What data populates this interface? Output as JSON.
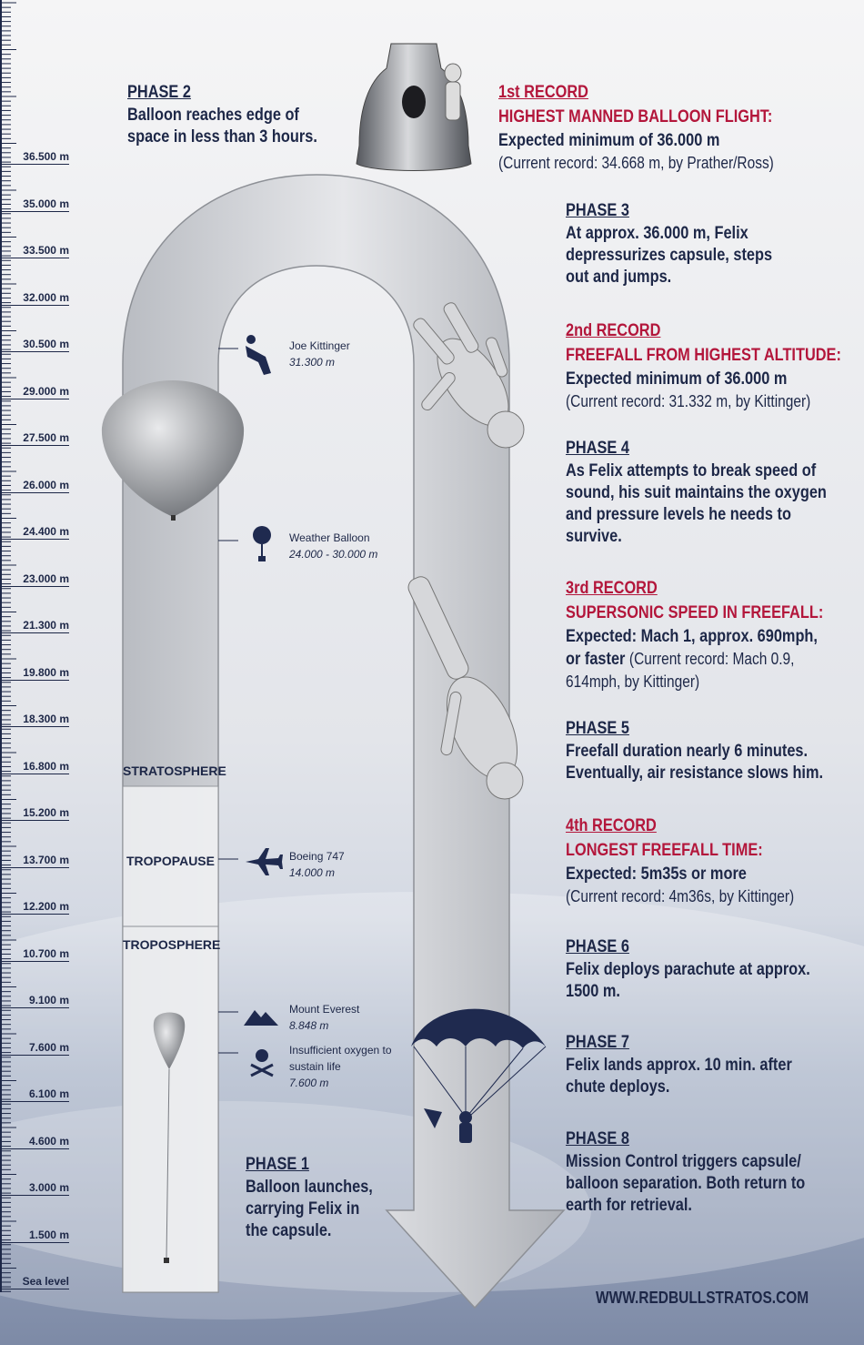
{
  "ruler": {
    "labels": [
      "36.500 m",
      "35.000 m",
      "33.500 m",
      "32.000 m",
      "30.500 m",
      "29.000 m",
      "27.500 m",
      "26.000 m",
      "24.400 m",
      "23.000 m",
      "21.300 m",
      "19.800 m",
      "18.300 m",
      "16.800 m",
      "15.200 m",
      "13.700 m",
      "12.200 m",
      "10.700 m",
      "9.100 m",
      "7.600 m",
      "6.100 m",
      "4.600 m",
      "3.000 m",
      "1.500 m",
      "Sea level"
    ]
  },
  "layers": [
    "STRATOSPHERE",
    "TROPOPAUSE",
    "TROPOSPHERE"
  ],
  "markers": [
    {
      "name": "Joe Kittinger",
      "altitude": "31.300 m"
    },
    {
      "name": "Weather Balloon",
      "altitude": "24.000 - 30.000 m"
    },
    {
      "name": "Boeing 747",
      "altitude": "14.000 m"
    },
    {
      "name": "Mount Everest",
      "altitude": "8.848 m"
    },
    {
      "name": "Insufficient oxygen to sustain life",
      "altitude": "7.600 m"
    }
  ],
  "phase_1": {
    "label": "PHASE 1",
    "lines": [
      "Balloon launches,",
      "carrying Felix in",
      "the capsule."
    ]
  },
  "phase_2": {
    "label": "PHASE 2",
    "lines": [
      "Balloon reaches edge of",
      "space in less than 3 hours."
    ]
  },
  "record_1": {
    "label": "1st RECORD",
    "heading": "HIGHEST MANNED BALLOON FLIGHT:",
    "lines": [
      "Expected minimum of 36.000 m"
    ],
    "note": "(Current record: 34.668 m, by Prather/Ross)"
  },
  "phase_3": {
    "label": "PHASE 3",
    "lines": [
      "At approx. 36.000 m, Felix",
      "depressurizes capsule, steps",
      "out and jumps."
    ]
  },
  "record_2": {
    "label": "2nd RECORD",
    "heading": "FREEFALL FROM HIGHEST ALTITUDE:",
    "lines": [
      "Expected minimum of 36.000 m"
    ],
    "note": "(Current record: 31.332 m, by Kittinger)"
  },
  "phase_4": {
    "label": "PHASE 4",
    "lines": [
      "As Felix attempts to break speed of",
      "sound, his suit maintains the oxygen",
      "and pressure levels he needs to",
      "survive."
    ]
  },
  "record_3": {
    "label": "3rd RECORD",
    "heading": "SUPERSONIC SPEED IN FREEFALL:",
    "lines": [
      "Expected: Mach 1, approx. 690mph,",
      "or faster"
    ],
    "note_lines": [
      "(Current record: Mach 0.9,",
      "614mph, by Kittinger)"
    ]
  },
  "phase_5": {
    "label": "PHASE 5",
    "lines": [
      "Freefall duration nearly 6 minutes.",
      "Eventually, air resistance slows him."
    ]
  },
  "record_4": {
    "label": "4th RECORD",
    "heading": "LONGEST FREEFALL TIME:",
    "lines": [
      "Expected: 5m35s or more"
    ],
    "note": "(Current record: 4m36s, by Kittinger)"
  },
  "phase_6": {
    "label": "PHASE 6",
    "lines": [
      "Felix deploys parachute at approx.",
      "1500 m."
    ]
  },
  "phase_7": {
    "label": "PHASE 7",
    "lines": [
      "Felix lands approx. 10 min. after",
      "chute deploys."
    ]
  },
  "phase_8": {
    "label": "PHASE 8",
    "lines": [
      "Mission Control triggers capsule/",
      "balloon separation. Both return to",
      "earth for retrieval."
    ]
  },
  "website": "WWW.REDBULLSTRATOS.COM"
}
